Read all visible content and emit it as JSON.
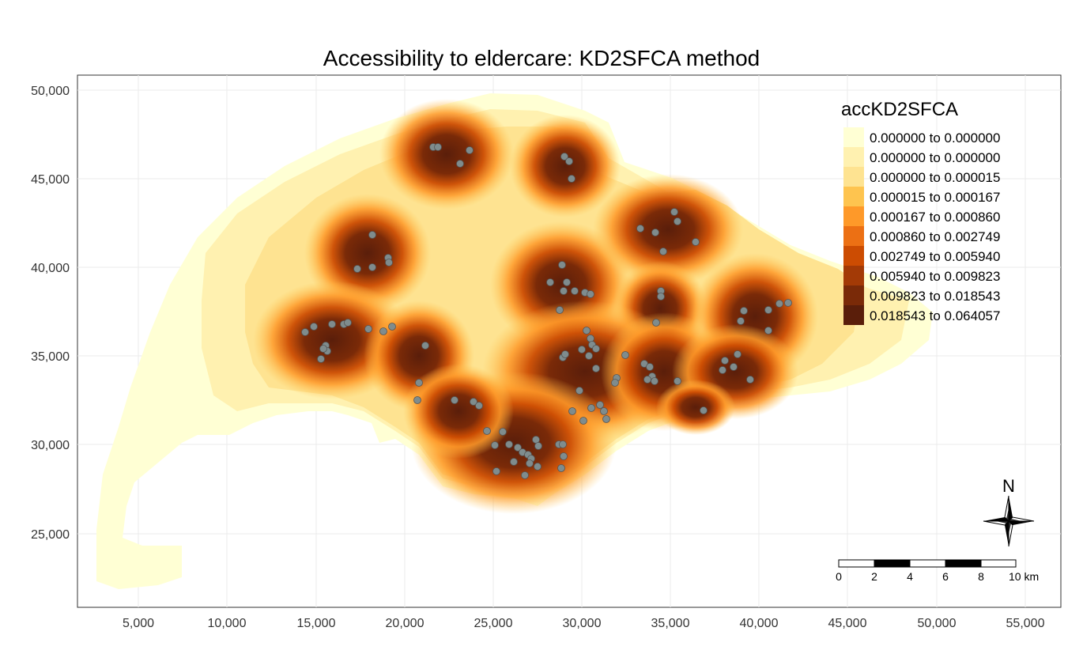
{
  "title": "Accessibility to eldercare: KD2SFCA method",
  "legend": {
    "title": "accKD2SFCA",
    "classes": [
      {
        "label": "0.000000 to 0.000000",
        "color": "#ffffd4"
      },
      {
        "label": "0.000000 to 0.000000",
        "color": "#fff1b0"
      },
      {
        "label": "0.000000 to 0.000015",
        "color": "#fee391"
      },
      {
        "label": "0.000015 to 0.000167",
        "color": "#fec44f"
      },
      {
        "label": "0.000167 to 0.000860",
        "color": "#fe9929"
      },
      {
        "label": "0.000860 to 0.002749",
        "color": "#ec7014"
      },
      {
        "label": "0.002749 to 0.005940",
        "color": "#cc4c02"
      },
      {
        "label": "0.005940 to 0.009823",
        "color": "#a33a06"
      },
      {
        "label": "0.009823 to 0.018543",
        "color": "#7a2a08"
      },
      {
        "label": "0.018543 to 0.064057",
        "color": "#5a1e0a"
      }
    ]
  },
  "axes": {
    "x_ticks": [
      "5,000",
      "10,000",
      "15,000",
      "20,000",
      "25,000",
      "30,000",
      "35,000",
      "40,000",
      "45,000",
      "50,000",
      "55,000"
    ],
    "y_ticks": [
      "50,000",
      "45,000",
      "40,000",
      "35,000",
      "30,000",
      "25,000"
    ]
  },
  "scale_bar": {
    "labels": [
      "0",
      "2",
      "4",
      "6",
      "8",
      "10 km"
    ]
  },
  "north_arrow": {
    "label": "N",
    "icon": "compass-rose-icon"
  },
  "point_color": "#7f8c8d"
}
